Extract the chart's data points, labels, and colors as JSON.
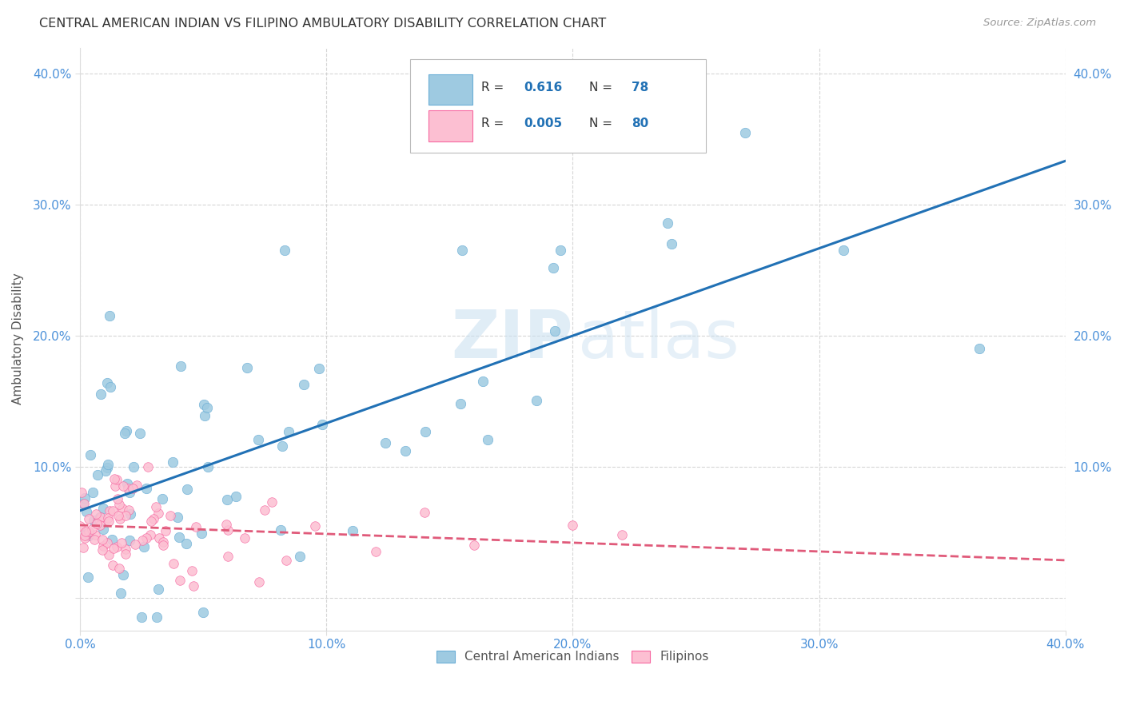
{
  "title": "CENTRAL AMERICAN INDIAN VS FILIPINO AMBULATORY DISABILITY CORRELATION CHART",
  "source": "Source: ZipAtlas.com",
  "ylabel": "Ambulatory Disability",
  "xlim": [
    0.0,
    0.4
  ],
  "ylim": [
    -0.025,
    0.42
  ],
  "xticks": [
    0.0,
    0.1,
    0.2,
    0.3,
    0.4
  ],
  "yticks": [
    0.0,
    0.1,
    0.2,
    0.3,
    0.4
  ],
  "xticklabels": [
    "0.0%",
    "10.0%",
    "20.0%",
    "30.0%",
    "40.0%"
  ],
  "yticklabels_left": [
    "",
    "10.0%",
    "20.0%",
    "30.0%",
    "40.0%"
  ],
  "yticklabels_right": [
    "",
    "10.0%",
    "20.0%",
    "30.0%",
    "40.0%"
  ],
  "blue_color": "#9ecae1",
  "pink_color": "#fcbfd2",
  "blue_edge_color": "#6baed6",
  "pink_edge_color": "#f768a1",
  "blue_line_color": "#2171b5",
  "pink_line_color": "#e05a7a",
  "blue_R": 0.616,
  "blue_N": 78,
  "pink_R": 0.005,
  "pink_N": 80,
  "watermark_zip": "ZIP",
  "watermark_atlas": "atlas",
  "legend_label_blue": "Central American Indians",
  "legend_label_pink": "Filipinos",
  "background_color": "#ffffff",
  "grid_color": "#cccccc",
  "tick_color": "#4a90d9",
  "title_color": "#333333",
  "source_color": "#999999"
}
